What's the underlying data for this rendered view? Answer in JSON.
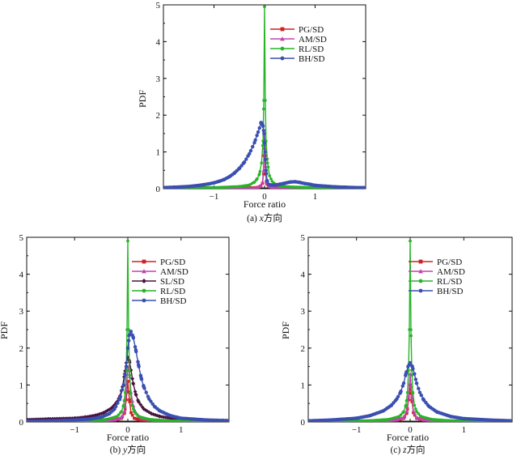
{
  "figure": {
    "x_axis_label": "Force ratio",
    "y_axis_label": "PDF"
  },
  "colors": {
    "PG/SD": "#cc2222",
    "AM/SD": "#c244b0",
    "SL/SD": "#4a1240",
    "RL/SD": "#27b427",
    "BH/SD": "#3a4fb0"
  },
  "chart_data": [
    {
      "id": "panel-a",
      "type": "line",
      "title": "",
      "caption": "(a) x方向",
      "caption_prefix": "(a) ",
      "caption_axis": "x",
      "caption_suffix": "方向",
      "xlabel": "Force ratio",
      "ylabel": "PDF",
      "xlim": [
        -2,
        2
      ],
      "ylim": [
        0,
        5
      ],
      "xticks": [
        -1,
        0,
        1
      ],
      "xtick_labels": [
        "−1",
        "0",
        "1"
      ],
      "yticks": [
        0,
        1,
        2,
        3,
        4,
        5
      ],
      "legend_position": "top-right",
      "series": [
        {
          "name": "PG/SD",
          "x": [
            -2,
            -0.3,
            -0.15,
            -0.08,
            -0.04,
            -0.02,
            -0.01,
            0,
            0.01,
            0.02,
            0.04,
            0.08,
            0.15,
            0.3,
            2
          ],
          "y": [
            0.02,
            0.02,
            0.03,
            0.06,
            0.15,
            0.4,
            0.9,
            1.2,
            0.9,
            0.4,
            0.15,
            0.06,
            0.03,
            0.02,
            0.02
          ]
        },
        {
          "name": "AM/SD",
          "x": [
            -2,
            -0.3,
            -0.15,
            -0.08,
            -0.04,
            -0.02,
            -0.01,
            0,
            0.01,
            0.02,
            0.04,
            0.08,
            0.15,
            0.3,
            2
          ],
          "y": [
            0.02,
            0.02,
            0.03,
            0.07,
            0.18,
            0.5,
            1.1,
            1.5,
            1.1,
            0.5,
            0.18,
            0.07,
            0.03,
            0.02,
            0.02
          ]
        },
        {
          "name": "RL/SD",
          "x": [
            -2,
            -1,
            -0.5,
            -0.3,
            -0.2,
            -0.15,
            -0.1,
            -0.06,
            -0.03,
            -0.015,
            0,
            0.015,
            0.03,
            0.06,
            0.1,
            0.15,
            0.2,
            0.3,
            0.5,
            1,
            2
          ],
          "y": [
            0.02,
            0.03,
            0.06,
            0.1,
            0.18,
            0.26,
            0.4,
            0.7,
            1.3,
            2.4,
            4.95,
            2.4,
            1.3,
            0.7,
            0.35,
            0.2,
            0.13,
            0.08,
            0.05,
            0.03,
            0.02
          ]
        },
        {
          "name": "BH/SD",
          "x": [
            -2,
            -1.8,
            -1.5,
            -1.3,
            -1.1,
            -1,
            -0.9,
            -0.8,
            -0.7,
            -0.6,
            -0.5,
            -0.4,
            -0.3,
            -0.2,
            -0.15,
            -0.1,
            -0.07,
            -0.05,
            -0.03,
            -0.01,
            0.01,
            0.03,
            0.05,
            0.08,
            0.12,
            0.2,
            0.3,
            0.4,
            0.5,
            0.6,
            0.7,
            0.8,
            0.9,
            1,
            1.2,
            1.4,
            1.6,
            1.8,
            2
          ],
          "y": [
            0.03,
            0.04,
            0.06,
            0.09,
            0.13,
            0.16,
            0.2,
            0.25,
            0.32,
            0.42,
            0.55,
            0.72,
            0.95,
            1.25,
            1.45,
            1.65,
            1.8,
            1.78,
            1.7,
            1.5,
            1.0,
            0.5,
            0.22,
            0.12,
            0.1,
            0.1,
            0.12,
            0.15,
            0.18,
            0.19,
            0.17,
            0.14,
            0.12,
            0.09,
            0.07,
            0.05,
            0.04,
            0.03,
            0.03
          ]
        }
      ]
    },
    {
      "id": "panel-b",
      "type": "line",
      "title": "",
      "caption": "(b) y方向",
      "caption_prefix": "(b) ",
      "caption_axis": "y",
      "caption_suffix": "方向",
      "xlabel": "Force ratio",
      "ylabel": "PDF",
      "xlim": [
        -1.9,
        1.9
      ],
      "ylim": [
        0,
        5
      ],
      "xticks": [
        -1,
        0,
        1
      ],
      "xtick_labels": [
        "−1",
        "0",
        "1"
      ],
      "yticks": [
        0,
        1,
        2,
        3,
        4,
        5
      ],
      "legend_position": "top-right",
      "series": [
        {
          "name": "PG/SD",
          "x": [
            -1.9,
            -0.5,
            -0.25,
            -0.12,
            -0.06,
            -0.03,
            0,
            0.03,
            0.06,
            0.12,
            0.25,
            0.5,
            1.9
          ],
          "y": [
            0.02,
            0.03,
            0.05,
            0.1,
            0.25,
            0.6,
            1.1,
            0.6,
            0.25,
            0.1,
            0.05,
            0.03,
            0.02
          ]
        },
        {
          "name": "AM/SD",
          "x": [
            -1.9,
            -0.5,
            -0.25,
            -0.12,
            -0.06,
            -0.03,
            0,
            0.03,
            0.06,
            0.1,
            0.15,
            0.25,
            0.5,
            1.9
          ],
          "y": [
            0.02,
            0.03,
            0.06,
            0.12,
            0.3,
            0.8,
            1.5,
            1.3,
            0.8,
            0.45,
            0.25,
            0.1,
            0.04,
            0.02
          ]
        },
        {
          "name": "SL/SD",
          "x": [
            -1.9,
            -1.5,
            -1,
            -0.8,
            -0.6,
            -0.45,
            -0.3,
            -0.2,
            -0.15,
            -0.1,
            -0.06,
            -0.03,
            0,
            0.03,
            0.06,
            0.1,
            0.15,
            0.2,
            0.3,
            0.45,
            0.6,
            0.8,
            1,
            1.5,
            1.9
          ],
          "y": [
            0.06,
            0.08,
            0.1,
            0.13,
            0.18,
            0.25,
            0.38,
            0.55,
            0.7,
            0.95,
            1.3,
            1.6,
            1.75,
            1.65,
            1.4,
            1.05,
            0.75,
            0.55,
            0.35,
            0.22,
            0.15,
            0.1,
            0.07,
            0.05,
            0.04
          ]
        },
        {
          "name": "RL/SD",
          "x": [
            -1.9,
            -0.8,
            -0.4,
            -0.2,
            -0.12,
            -0.08,
            -0.05,
            -0.03,
            -0.015,
            0,
            0.015,
            0.03,
            0.05,
            0.08,
            0.12,
            0.2,
            0.4,
            0.8,
            1.9
          ],
          "y": [
            0.02,
            0.03,
            0.07,
            0.15,
            0.28,
            0.45,
            0.8,
            1.4,
            2.5,
            4.9,
            2.5,
            1.4,
            0.8,
            0.45,
            0.28,
            0.15,
            0.07,
            0.03,
            0.02
          ]
        },
        {
          "name": "BH/SD",
          "x": [
            -1.9,
            -1.5,
            -1,
            -0.7,
            -0.5,
            -0.35,
            -0.25,
            -0.15,
            -0.08,
            -0.03,
            0,
            0.03,
            0.06,
            0.1,
            0.15,
            0.2,
            0.25,
            0.3,
            0.4,
            0.5,
            0.6,
            0.8,
            1,
            1.5,
            1.9
          ],
          "y": [
            0.02,
            0.03,
            0.05,
            0.08,
            0.13,
            0.22,
            0.35,
            0.62,
            1.0,
            1.5,
            2.0,
            2.35,
            2.45,
            2.3,
            1.95,
            1.55,
            1.2,
            0.95,
            0.62,
            0.42,
            0.3,
            0.17,
            0.1,
            0.05,
            0.03
          ]
        }
      ]
    },
    {
      "id": "panel-c",
      "type": "line",
      "title": "",
      "caption": "(c) z方向",
      "caption_prefix": "(c) ",
      "caption_axis": "z",
      "caption_suffix": "方向",
      "xlabel": "Force ratio",
      "ylabel": "PDF",
      "xlim": [
        -1.9,
        1.9
      ],
      "ylim": [
        0,
        5
      ],
      "xticks": [
        -1,
        0,
        1
      ],
      "xtick_labels": [
        "−1",
        "0",
        "1"
      ],
      "yticks": [
        0,
        1,
        2,
        3,
        4,
        5
      ],
      "legend_position": "top-right",
      "series": [
        {
          "name": "PG/SD",
          "x": [
            -1.9,
            -0.5,
            -0.25,
            -0.12,
            -0.06,
            -0.03,
            0,
            0.03,
            0.06,
            0.12,
            0.25,
            0.5,
            1.9
          ],
          "y": [
            0.02,
            0.03,
            0.05,
            0.1,
            0.25,
            0.6,
            1.0,
            0.6,
            0.25,
            0.1,
            0.05,
            0.03,
            0.02
          ]
        },
        {
          "name": "AM/SD",
          "x": [
            -1.9,
            -0.5,
            -0.25,
            -0.12,
            -0.06,
            -0.03,
            0,
            0.03,
            0.06,
            0.12,
            0.25,
            0.5,
            1.9
          ],
          "y": [
            0.02,
            0.03,
            0.06,
            0.12,
            0.3,
            0.7,
            1.3,
            0.7,
            0.3,
            0.12,
            0.06,
            0.03,
            0.02
          ]
        },
        {
          "name": "RL/SD",
          "x": [
            -1.9,
            -0.8,
            -0.4,
            -0.2,
            -0.12,
            -0.08,
            -0.05,
            -0.03,
            -0.015,
            0,
            0.015,
            0.03,
            0.05,
            0.08,
            0.12,
            0.2,
            0.4,
            0.8,
            1.9
          ],
          "y": [
            0.02,
            0.03,
            0.07,
            0.15,
            0.28,
            0.45,
            0.8,
            1.4,
            2.5,
            4.9,
            2.5,
            1.4,
            0.8,
            0.45,
            0.28,
            0.15,
            0.07,
            0.03,
            0.02
          ]
        },
        {
          "name": "BH/SD",
          "x": [
            -1.9,
            -1.5,
            -1,
            -0.75,
            -0.5,
            -0.35,
            -0.25,
            -0.18,
            -0.12,
            -0.08,
            -0.04,
            0,
            0.04,
            0.08,
            0.12,
            0.18,
            0.25,
            0.35,
            0.5,
            0.75,
            1,
            1.5,
            1.9
          ],
          "y": [
            0.03,
            0.05,
            0.1,
            0.17,
            0.3,
            0.45,
            0.62,
            0.8,
            1.05,
            1.3,
            1.5,
            1.6,
            1.5,
            1.3,
            1.05,
            0.8,
            0.6,
            0.42,
            0.27,
            0.15,
            0.09,
            0.05,
            0.03
          ]
        }
      ]
    }
  ]
}
